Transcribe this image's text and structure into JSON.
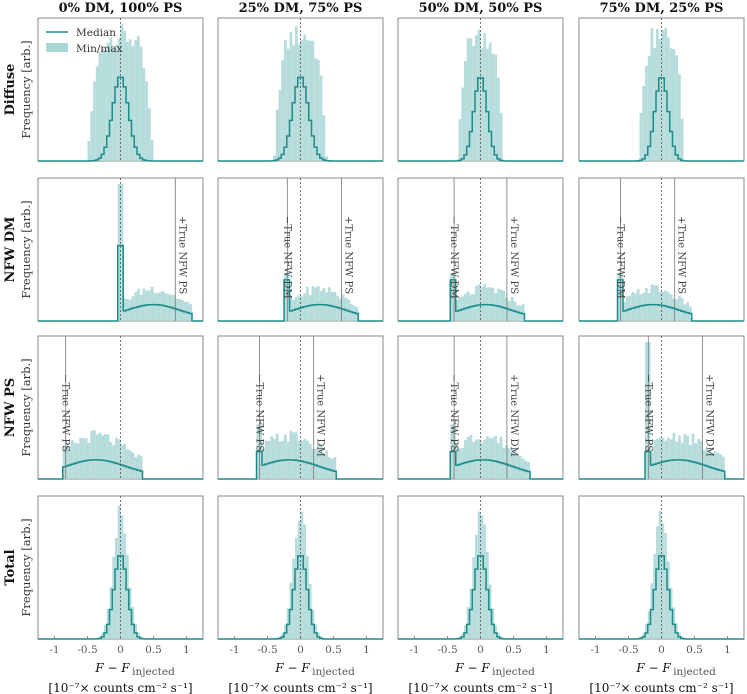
{
  "chart_data": {
    "type": "histogram-grid",
    "columns": [
      "0% DM, 100% PS",
      "25% DM, 75% PS",
      "50% DM, 50% PS",
      "75% DM, 25% PS"
    ],
    "rows": [
      "Diffuse",
      "NFW DM",
      "NFW PS",
      "Total"
    ],
    "ylabel": "Frequency [arb.]",
    "xlabel_line1": "F − F",
    "xlabel_sub": "injected",
    "xlabel_line2": "[10⁻⁷× counts cm⁻² s⁻¹]",
    "xlim": [
      -1.25,
      1.25
    ],
    "xticks": [
      "-1",
      "-0.5",
      "0",
      "0.5",
      "1"
    ],
    "xtick_values": [
      -1,
      -0.5,
      0,
      0.5,
      1
    ],
    "legend": {
      "median": "Median",
      "minmax": "Min/max",
      "placement": "top-left of first panel"
    },
    "colors": {
      "fill": "#a9d7d6",
      "line": "#1c8c8a",
      "frame": "#888888"
    },
    "annotations": {
      "true_dm_plus": "+True NFW DM",
      "true_dm_minus": "−True NFW DM",
      "true_ps_plus": "+True NFW PS",
      "true_ps_minus": "−True NFW PS"
    },
    "panels": {
      "Diffuse": [
        {
          "center": 0.0,
          "median_width": 0.12,
          "minmax_width": 0.5,
          "vlines": []
        },
        {
          "center": 0.0,
          "median_width": 0.12,
          "minmax_width": 0.4,
          "vlines": []
        },
        {
          "center": 0.0,
          "median_width": 0.1,
          "minmax_width": 0.35,
          "vlines": []
        },
        {
          "center": 0.0,
          "median_width": 0.1,
          "minmax_width": 0.35,
          "vlines": []
        }
      ],
      "NFW DM": [
        {
          "true_dm": 0.0,
          "true_ps": 0.83,
          "vlines": [
            {
              "x": 0.83,
              "label": "+True NFW PS"
            }
          ]
        },
        {
          "true_dm": 0.2,
          "true_ps": 0.62,
          "vlines": [
            {
              "x": -0.2,
              "label": "−True NFW DM"
            },
            {
              "x": 0.62,
              "label": "+True NFW PS"
            }
          ]
        },
        {
          "true_dm": 0.4,
          "true_ps": 0.4,
          "vlines": [
            {
              "x": -0.4,
              "label": "−True NFW DM"
            },
            {
              "x": 0.4,
              "label": "+True NFW PS"
            }
          ]
        },
        {
          "true_dm": 0.62,
          "true_ps": 0.2,
          "vlines": [
            {
              "x": -0.62,
              "label": "−True NFW DM"
            },
            {
              "x": 0.2,
              "label": "+True NFW PS"
            }
          ]
        }
      ],
      "NFW PS": [
        {
          "true_dm": 0.0,
          "true_ps": 0.83,
          "vlines": [
            {
              "x": -0.83,
              "label": "−True NFW PS"
            }
          ]
        },
        {
          "true_dm": 0.2,
          "true_ps": 0.62,
          "vlines": [
            {
              "x": -0.62,
              "label": "−True NFW PS"
            },
            {
              "x": 0.2,
              "label": "+True NFW DM"
            }
          ]
        },
        {
          "true_dm": 0.4,
          "true_ps": 0.4,
          "vlines": [
            {
              "x": -0.4,
              "label": "−True NFW PS"
            },
            {
              "x": 0.4,
              "label": "+True NFW DM"
            }
          ]
        },
        {
          "true_dm": 0.62,
          "true_ps": 0.2,
          "vlines": [
            {
              "x": -0.2,
              "label": "−True NFW PS"
            },
            {
              "x": 0.62,
              "label": "+True NFW DM"
            }
          ]
        }
      ],
      "Total": [
        {
          "center": 0.0,
          "median_width": 0.1,
          "minmax_width": 0.11,
          "vlines": []
        },
        {
          "center": 0.0,
          "median_width": 0.1,
          "minmax_width": 0.11,
          "vlines": []
        },
        {
          "center": 0.0,
          "median_width": 0.1,
          "minmax_width": 0.11,
          "vlines": []
        },
        {
          "center": 0.0,
          "median_width": 0.1,
          "minmax_width": 0.11,
          "vlines": []
        }
      ]
    }
  }
}
